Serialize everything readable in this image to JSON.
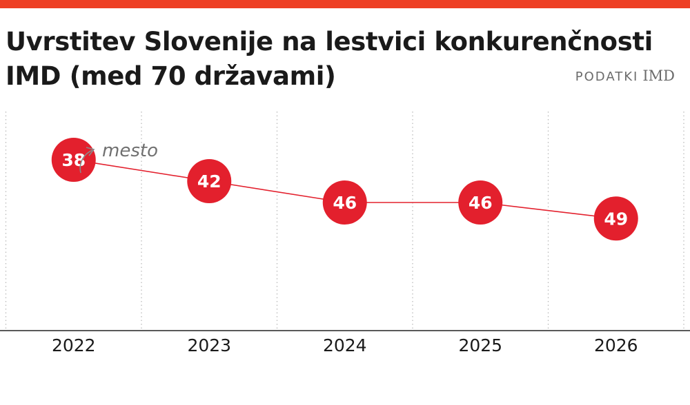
{
  "title": "Uvrstitev Slovenije na lestvici konkurenčnosti IMD (med 70 državami)",
  "source": {
    "label": "PODATKI",
    "name": "IMD"
  },
  "annotation": "mesto",
  "colors": {
    "accent": "#ee3f24",
    "marker": "#e3202d",
    "line": "#e3202d",
    "text": "#1a1a1a",
    "muted": "#6b6b6b"
  },
  "chart_data": {
    "type": "line",
    "categories": [
      "2022",
      "2023",
      "2024",
      "2025",
      "2026"
    ],
    "values": [
      38,
      42,
      46,
      46,
      49
    ],
    "data_labels": [
      "38",
      "42",
      "46",
      "46",
      "49"
    ],
    "xlabel": "",
    "ylabel": "",
    "y_axis": "inverted rank, hidden",
    "ylim": [
      30,
      70
    ],
    "grid": "vertical dotted",
    "legend": "none"
  }
}
